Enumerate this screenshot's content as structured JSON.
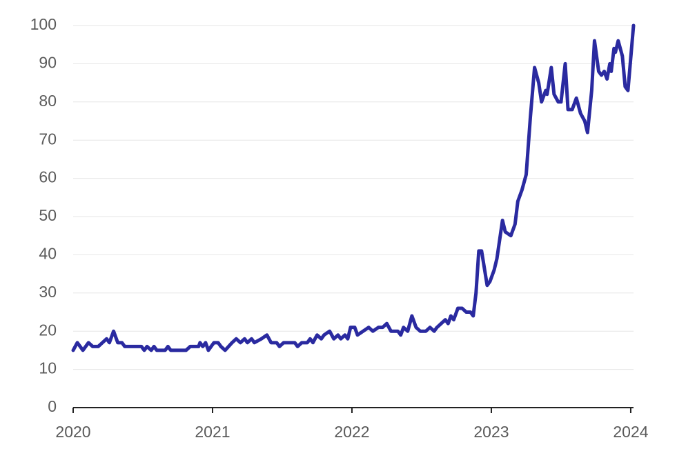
{
  "chart_data": {
    "type": "line",
    "color": "#2a2aa0",
    "grid": true,
    "xlim": [
      2020,
      2024.02
    ],
    "xticks": [
      2020,
      2021,
      2022,
      2023,
      2024
    ],
    "ylim": [
      0,
      100
    ],
    "yticks": [
      0,
      10,
      20,
      30,
      40,
      50,
      60,
      70,
      80,
      90,
      100
    ],
    "x": [
      2020.0,
      2020.03,
      2020.07,
      2020.11,
      2020.14,
      2020.18,
      2020.21,
      2020.24,
      2020.26,
      2020.29,
      2020.32,
      2020.35,
      2020.37,
      2020.49,
      2020.51,
      2020.53,
      2020.56,
      2020.58,
      2020.6,
      2020.66,
      2020.68,
      2020.7,
      2020.81,
      2020.84,
      2020.9,
      2020.91,
      2020.93,
      2020.95,
      2020.97,
      2021.01,
      2021.04,
      2021.06,
      2021.09,
      2021.14,
      2021.17,
      2021.2,
      2021.23,
      2021.25,
      2021.28,
      2021.3,
      2021.35,
      2021.39,
      2021.42,
      2021.46,
      2021.48,
      2021.51,
      2021.59,
      2021.61,
      2021.64,
      2021.68,
      2021.7,
      2021.72,
      2021.75,
      2021.78,
      2021.8,
      2021.84,
      2021.87,
      2021.9,
      2021.92,
      2021.95,
      2021.97,
      2021.99,
      2022.02,
      2022.04,
      2022.08,
      2022.12,
      2022.15,
      2022.19,
      2022.22,
      2022.25,
      2022.28,
      2022.33,
      2022.35,
      2022.37,
      2022.4,
      2022.43,
      2022.46,
      2022.49,
      2022.53,
      2022.56,
      2022.59,
      2022.61,
      2022.64,
      2022.67,
      2022.69,
      2022.71,
      2022.73,
      2022.76,
      2022.79,
      2022.82,
      2022.85,
      2022.87,
      2022.89,
      2022.91,
      2022.93,
      2022.97,
      2022.99,
      2023.02,
      2023.04,
      2023.08,
      2023.1,
      2023.14,
      2023.17,
      2023.19,
      2023.22,
      2023.25,
      2023.28,
      2023.31,
      2023.34,
      2023.36,
      2023.39,
      2023.4,
      2023.43,
      2023.45,
      2023.48,
      2023.5,
      2023.53,
      2023.55,
      2023.58,
      2023.61,
      2023.64,
      2023.67,
      2023.69,
      2023.72,
      2023.74,
      2023.77,
      2023.79,
      2023.81,
      2023.83,
      2023.85,
      2023.86,
      2023.88,
      2023.89,
      2023.91,
      2023.94,
      2023.96,
      2023.98,
      2024.02
    ],
    "values": [
      15,
      17,
      15,
      17,
      16,
      16,
      17,
      18,
      17,
      20,
      17,
      17,
      16,
      16,
      15,
      16,
      15,
      16,
      15,
      15,
      16,
      15,
      15,
      16,
      16,
      17,
      16,
      17,
      15,
      17,
      17,
      16,
      15,
      17,
      18,
      17,
      18,
      17,
      18,
      17,
      18,
      19,
      17,
      17,
      16,
      17,
      17,
      16,
      17,
      17,
      18,
      17,
      19,
      18,
      19,
      20,
      18,
      19,
      18,
      19,
      18,
      21,
      21,
      19,
      20,
      21,
      20,
      21,
      21,
      22,
      20,
      20,
      19,
      21,
      20,
      24,
      21,
      20,
      20,
      21,
      20,
      21,
      22,
      23,
      22,
      24,
      23,
      26,
      26,
      25,
      25,
      24,
      30,
      41,
      41,
      32,
      33,
      36,
      39,
      49,
      46,
      45,
      48,
      54,
      57,
      61,
      76,
      89,
      85,
      80,
      83,
      82,
      89,
      82,
      80,
      80,
      90,
      78,
      78,
      81,
      77,
      75,
      72,
      83,
      96,
      88,
      87,
      88,
      86,
      90,
      88,
      94,
      93,
      96,
      92,
      84,
      83,
      100
    ]
  }
}
